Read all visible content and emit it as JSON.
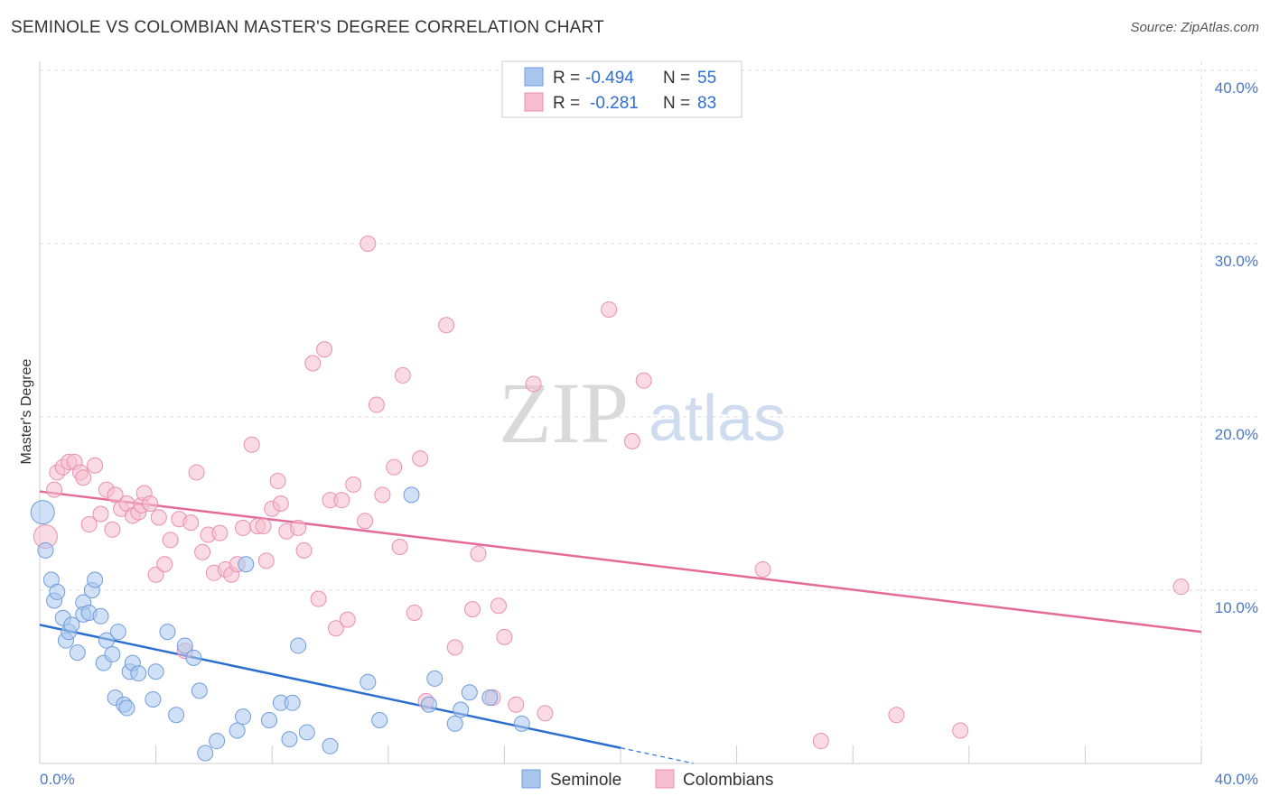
{
  "title": "SEMINOLE VS COLOMBIAN MASTER'S DEGREE CORRELATION CHART",
  "source": "Source: ZipAtlas.com",
  "watermark": {
    "zip": "ZIP",
    "atlas": "atlas"
  },
  "colors": {
    "seminole_fill": "#a9c6ee",
    "seminole_stroke": "#6f9ddc",
    "seminole_line": "#2a6fd0",
    "colombian_fill": "#f6bdd0",
    "colombian_stroke": "#ea8fb0",
    "colombian_line": "#e56b97",
    "axis_text": "#4a78c8",
    "grid": "#dddddd"
  },
  "legend": {
    "rows": [
      {
        "r_label": "R =",
        "r_value": "-0.494",
        "n_label": "N =",
        "n_value": "55"
      },
      {
        "r_label": "R =",
        "r_value": "-0.281",
        "n_label": "N =",
        "n_value": "83"
      }
    ]
  },
  "bottom_legend": [
    "Seminole",
    "Colombians"
  ],
  "chart_data": {
    "type": "scatter",
    "title": "SEMINOLE VS COLOMBIAN MASTER'S DEGREE CORRELATION CHART",
    "xlabel": "",
    "ylabel": "Master's Degree",
    "xlim": [
      0,
      40
    ],
    "ylim": [
      0,
      40
    ],
    "x_tick_labels": [
      "0.0%",
      "40.0%"
    ],
    "y_ticks": [
      10,
      20,
      30,
      40
    ],
    "y_tick_labels": [
      "10.0%",
      "20.0%",
      "30.0%",
      "40.0%"
    ],
    "grid": true,
    "series": [
      {
        "name": "Seminole",
        "r": -0.494,
        "n": 55,
        "trend": {
          "x0": 0,
          "y0": 8.0,
          "x1": 20,
          "y1": 0.9,
          "dash_to_x": 22.5
        },
        "points": [
          [
            0.1,
            14.5
          ],
          [
            0.2,
            12.3
          ],
          [
            0.4,
            10.6
          ],
          [
            0.5,
            9.4
          ],
          [
            0.6,
            9.9
          ],
          [
            0.8,
            8.4
          ],
          [
            0.9,
            7.1
          ],
          [
            1.0,
            7.6
          ],
          [
            1.1,
            8.0
          ],
          [
            1.3,
            6.4
          ],
          [
            1.5,
            9.3
          ],
          [
            1.5,
            8.6
          ],
          [
            1.7,
            8.7
          ],
          [
            1.8,
            10.0
          ],
          [
            1.9,
            10.6
          ],
          [
            2.1,
            8.5
          ],
          [
            2.2,
            5.8
          ],
          [
            2.3,
            7.1
          ],
          [
            2.5,
            6.3
          ],
          [
            2.6,
            3.8
          ],
          [
            2.7,
            7.6
          ],
          [
            2.9,
            3.4
          ],
          [
            3.0,
            3.2
          ],
          [
            3.1,
            5.3
          ],
          [
            3.2,
            5.8
          ],
          [
            3.4,
            5.2
          ],
          [
            3.9,
            3.7
          ],
          [
            4.0,
            5.3
          ],
          [
            4.4,
            7.6
          ],
          [
            4.7,
            2.8
          ],
          [
            5.0,
            6.8
          ],
          [
            5.3,
            6.1
          ],
          [
            5.5,
            4.2
          ],
          [
            5.7,
            0.6
          ],
          [
            6.1,
            1.3
          ],
          [
            6.8,
            1.9
          ],
          [
            7.0,
            2.7
          ],
          [
            7.1,
            11.5
          ],
          [
            7.9,
            2.5
          ],
          [
            8.3,
            3.5
          ],
          [
            8.6,
            1.4
          ],
          [
            8.7,
            3.5
          ],
          [
            8.9,
            6.8
          ],
          [
            9.2,
            1.8
          ],
          [
            10.0,
            1.0
          ],
          [
            11.3,
            4.7
          ],
          [
            11.7,
            2.5
          ],
          [
            12.8,
            15.5
          ],
          [
            13.4,
            3.4
          ],
          [
            13.6,
            4.9
          ],
          [
            14.3,
            2.3
          ],
          [
            14.5,
            3.1
          ],
          [
            14.8,
            4.1
          ],
          [
            15.5,
            3.8
          ],
          [
            16.6,
            2.3
          ]
        ]
      },
      {
        "name": "Colombians",
        "r": -0.281,
        "n": 83,
        "trend": {
          "x0": 0,
          "y0": 15.7,
          "x1": 40,
          "y1": 7.6
        },
        "points": [
          [
            0.2,
            13.1
          ],
          [
            0.5,
            15.8
          ],
          [
            0.6,
            16.8
          ],
          [
            0.8,
            17.1
          ],
          [
            1.0,
            17.4
          ],
          [
            1.2,
            17.4
          ],
          [
            1.4,
            16.8
          ],
          [
            1.5,
            16.5
          ],
          [
            1.7,
            13.8
          ],
          [
            1.9,
            17.2
          ],
          [
            2.1,
            14.4
          ],
          [
            2.3,
            15.8
          ],
          [
            2.5,
            13.5
          ],
          [
            2.6,
            15.5
          ],
          [
            2.8,
            14.7
          ],
          [
            3.0,
            15.0
          ],
          [
            3.2,
            14.3
          ],
          [
            3.4,
            14.5
          ],
          [
            3.5,
            14.9
          ],
          [
            3.6,
            15.6
          ],
          [
            3.8,
            15.0
          ],
          [
            4.0,
            10.9
          ],
          [
            4.1,
            14.2
          ],
          [
            4.3,
            11.5
          ],
          [
            4.5,
            12.9
          ],
          [
            4.8,
            14.1
          ],
          [
            5.0,
            6.5
          ],
          [
            5.2,
            13.9
          ],
          [
            5.4,
            16.8
          ],
          [
            5.6,
            12.2
          ],
          [
            5.8,
            13.2
          ],
          [
            6.0,
            11.0
          ],
          [
            6.2,
            13.3
          ],
          [
            6.4,
            11.2
          ],
          [
            6.6,
            10.9
          ],
          [
            6.8,
            11.5
          ],
          [
            7.0,
            13.6
          ],
          [
            7.3,
            18.4
          ],
          [
            7.5,
            13.7
          ],
          [
            7.7,
            13.7
          ],
          [
            7.8,
            11.7
          ],
          [
            8.0,
            14.7
          ],
          [
            8.2,
            16.3
          ],
          [
            8.3,
            15.0
          ],
          [
            8.5,
            13.4
          ],
          [
            8.9,
            13.6
          ],
          [
            9.1,
            12.3
          ],
          [
            9.4,
            23.1
          ],
          [
            9.6,
            9.5
          ],
          [
            9.8,
            23.9
          ],
          [
            10.0,
            15.2
          ],
          [
            10.2,
            7.8
          ],
          [
            10.4,
            15.2
          ],
          [
            10.6,
            8.3
          ],
          [
            10.8,
            16.1
          ],
          [
            11.2,
            14.0
          ],
          [
            11.3,
            30.0
          ],
          [
            11.6,
            20.7
          ],
          [
            11.8,
            15.5
          ],
          [
            12.2,
            17.1
          ],
          [
            12.4,
            12.5
          ],
          [
            12.5,
            22.4
          ],
          [
            12.9,
            8.7
          ],
          [
            13.1,
            17.6
          ],
          [
            13.3,
            3.6
          ],
          [
            14.0,
            25.3
          ],
          [
            14.3,
            6.7
          ],
          [
            14.9,
            8.9
          ],
          [
            15.1,
            12.1
          ],
          [
            15.6,
            3.8
          ],
          [
            15.8,
            9.1
          ],
          [
            16.0,
            7.3
          ],
          [
            16.4,
            3.4
          ],
          [
            17.0,
            21.9
          ],
          [
            17.4,
            2.9
          ],
          [
            19.6,
            26.2
          ],
          [
            20.4,
            18.6
          ],
          [
            20.8,
            22.1
          ],
          [
            24.9,
            11.2
          ],
          [
            26.9,
            1.3
          ],
          [
            29.5,
            2.8
          ],
          [
            31.7,
            1.9
          ],
          [
            39.3,
            10.2
          ]
        ]
      }
    ]
  }
}
